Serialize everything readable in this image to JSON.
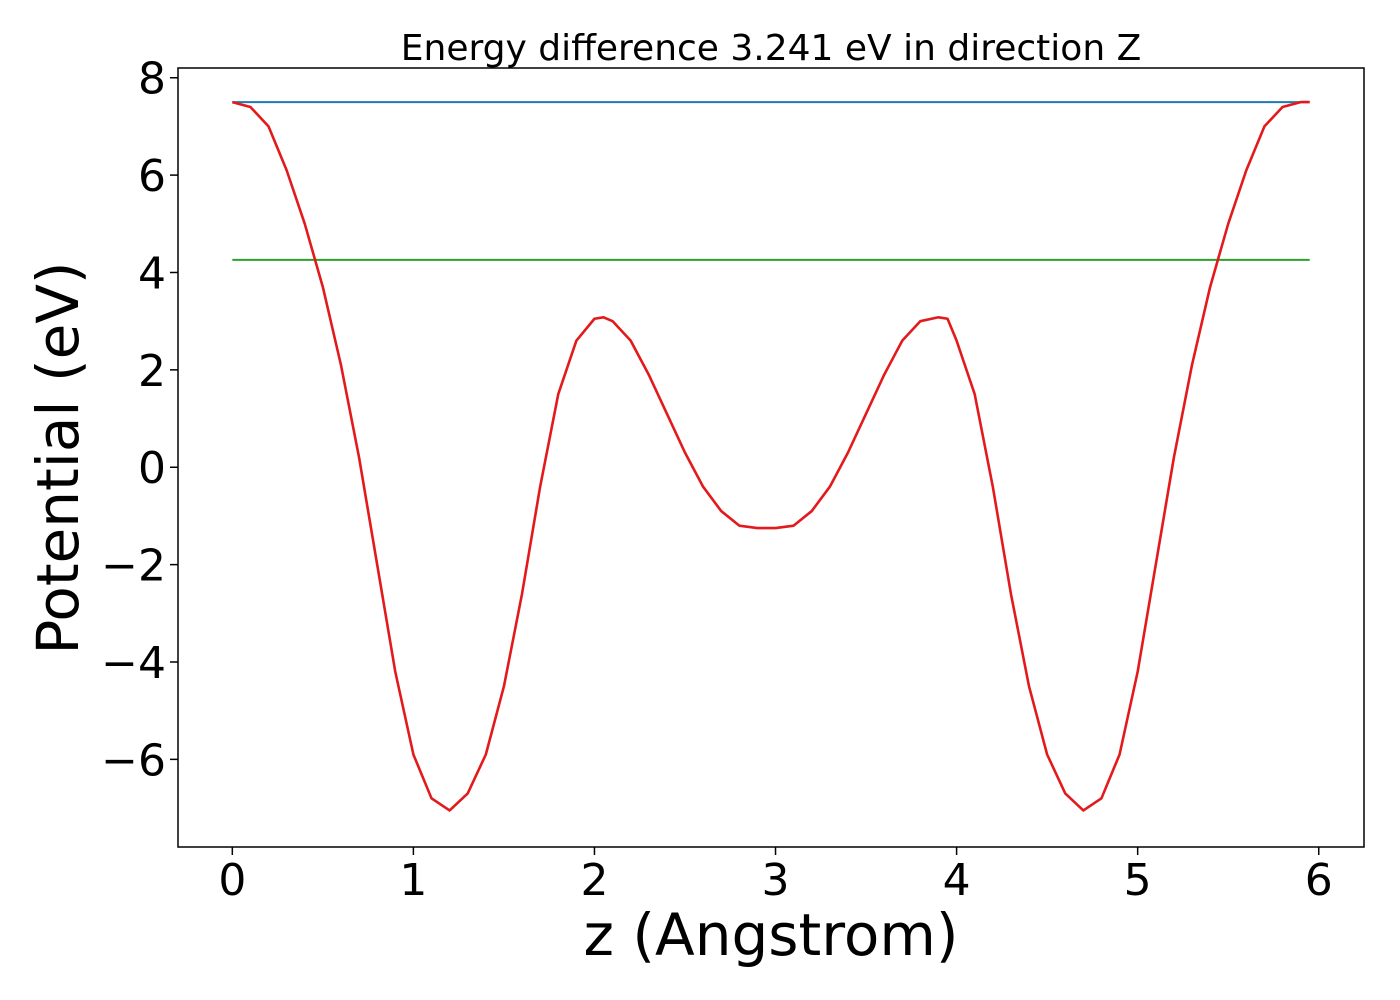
{
  "chart_data": {
    "type": "line",
    "title": "Energy difference 3.241 eV in direction Z",
    "xlabel": "z (Angstrom)",
    "ylabel": "Potential (eV)",
    "xlim": [
      -0.3,
      6.25
    ],
    "ylim": [
      -7.8,
      8.2
    ],
    "xticks": [
      0,
      1,
      2,
      3,
      4,
      5,
      6
    ],
    "xtick_labels": [
      "0",
      "1",
      "2",
      "3",
      "4",
      "5",
      "6"
    ],
    "yticks": [
      8,
      6,
      4,
      2,
      0,
      -2,
      -4,
      -6
    ],
    "ytick_labels": [
      "8",
      "6",
      "4",
      "2",
      "0",
      "−2",
      "−4",
      "−6"
    ],
    "grid": false,
    "colors": {
      "potential": "#e31a1c",
      "vacuum": "#1f77b4",
      "fermi": "#2ca02c"
    },
    "series": [
      {
        "key": "potential",
        "x": [
          0,
          0.1,
          0.2,
          0.3,
          0.4,
          0.5,
          0.6,
          0.7,
          0.8,
          0.9,
          1.0,
          1.1,
          1.2,
          1.3,
          1.4,
          1.5,
          1.6,
          1.7,
          1.8,
          1.9,
          2.0,
          2.05,
          2.1,
          2.2,
          2.3,
          2.4,
          2.5,
          2.6,
          2.7,
          2.8,
          2.9,
          3.0,
          3.1,
          3.2,
          3.3,
          3.4,
          3.5,
          3.6,
          3.7,
          3.8,
          3.9,
          3.95,
          4.0,
          4.1,
          4.2,
          4.3,
          4.4,
          4.5,
          4.6,
          4.7,
          4.8,
          4.9,
          5.0,
          5.1,
          5.2,
          5.3,
          5.4,
          5.5,
          5.6,
          5.7,
          5.8,
          5.9,
          5.95
        ],
        "y": [
          7.5,
          7.4,
          7.0,
          6.1,
          5.0,
          3.7,
          2.1,
          0.2,
          -2.0,
          -4.2,
          -5.9,
          -6.8,
          -7.05,
          -6.7,
          -5.9,
          -4.5,
          -2.6,
          -0.4,
          1.5,
          2.6,
          3.05,
          3.08,
          3.0,
          2.6,
          1.9,
          1.1,
          0.3,
          -0.4,
          -0.9,
          -1.2,
          -1.25,
          -1.25,
          -1.2,
          -0.9,
          -0.4,
          0.3,
          1.1,
          1.9,
          2.6,
          3.0,
          3.08,
          3.05,
          2.6,
          1.5,
          -0.4,
          -2.6,
          -4.5,
          -5.9,
          -6.7,
          -7.05,
          -6.8,
          -5.9,
          -4.2,
          -2.0,
          0.2,
          2.1,
          3.7,
          5.0,
          6.1,
          7.0,
          7.4,
          7.5,
          7.5
        ]
      },
      {
        "key": "vacuum",
        "x": [
          0,
          5.95
        ],
        "y": [
          7.5,
          7.5
        ]
      },
      {
        "key": "fermi",
        "x": [
          0,
          5.95
        ],
        "y": [
          4.26,
          4.26
        ]
      }
    ]
  }
}
